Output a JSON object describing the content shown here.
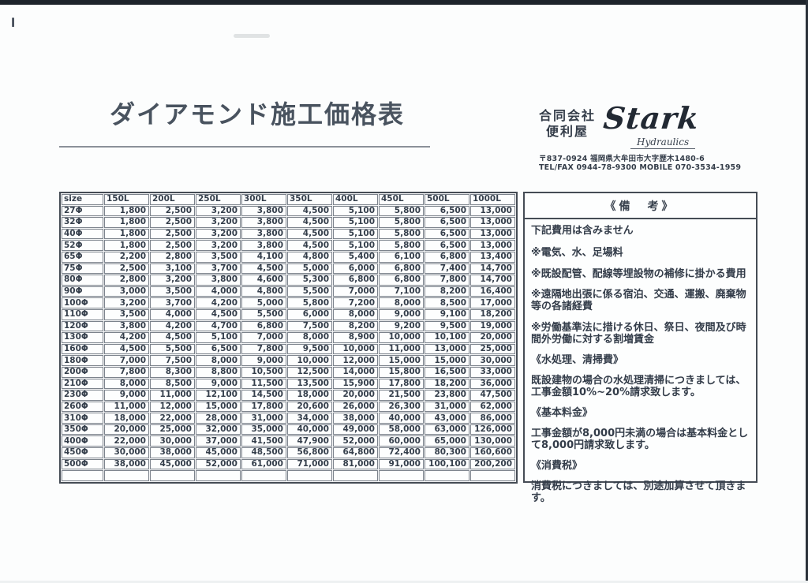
{
  "scan": {
    "stray_mark": "l"
  },
  "header": {
    "title": "ダイアモンド施工価格表",
    "company": {
      "name_line1": "合同会社",
      "name_line2": "便利屋",
      "logo_text": "Stark",
      "logo_sub": "Hydraulics",
      "address": "〒837-0924 福岡県大牟田市大字歴木1480-6",
      "contact": "TEL/FAX 0944-78-9300 MOBILE 070-3534-1959"
    }
  },
  "price_table": {
    "columns": [
      "size",
      "150L",
      "200L",
      "250L",
      "300L",
      "350L",
      "400L",
      "450L",
      "500L",
      "1000L"
    ],
    "rows": [
      {
        "size": "27Φ",
        "values": [
          "1,800",
          "2,500",
          "3,200",
          "3,800",
          "4,500",
          "5,100",
          "5,800",
          "6,500",
          "13,000"
        ]
      },
      {
        "size": "32Φ",
        "values": [
          "1,800",
          "2,500",
          "3,200",
          "3,800",
          "4,500",
          "5,100",
          "5,800",
          "6,500",
          "13,000"
        ]
      },
      {
        "size": "40Φ",
        "values": [
          "1,800",
          "2,500",
          "3,200",
          "3,800",
          "4,500",
          "5,100",
          "5,800",
          "6,500",
          "13,000"
        ]
      },
      {
        "size": "52Φ",
        "values": [
          "1,800",
          "2,500",
          "3,200",
          "3,800",
          "4,500",
          "5,100",
          "5,800",
          "6,500",
          "13,000"
        ]
      },
      {
        "size": "65Φ",
        "values": [
          "2,200",
          "2,800",
          "3,500",
          "4,100",
          "4,800",
          "5,400",
          "6,100",
          "6,800",
          "13,400"
        ]
      },
      {
        "size": "75Φ",
        "values": [
          "2,500",
          "3,100",
          "3,700",
          "4,500",
          "5,000",
          "6,000",
          "6,800",
          "7,400",
          "14,700"
        ]
      },
      {
        "size": "80Φ",
        "values": [
          "2,800",
          "3,200",
          "3,800",
          "4,600",
          "5,300",
          "6,800",
          "6,800",
          "7,800",
          "14,700"
        ]
      },
      {
        "size": "90Φ",
        "values": [
          "3,000",
          "3,500",
          "4,000",
          "4,800",
          "5,500",
          "7,000",
          "7,100",
          "8,200",
          "16,400"
        ]
      },
      {
        "size": "100Φ",
        "values": [
          "3,200",
          "3,700",
          "4,200",
          "5,000",
          "5,800",
          "7,200",
          "8,000",
          "8,500",
          "17,000"
        ]
      },
      {
        "size": "110Φ",
        "values": [
          "3,500",
          "4,000",
          "4,500",
          "5,500",
          "6,000",
          "8,000",
          "9,000",
          "9,100",
          "18,200"
        ]
      },
      {
        "size": "120Φ",
        "values": [
          "3,800",
          "4,200",
          "4,700",
          "6,800",
          "7,500",
          "8,200",
          "9,200",
          "9,500",
          "19,000"
        ]
      },
      {
        "size": "130Φ",
        "values": [
          "4,200",
          "4,500",
          "5,100",
          "7,000",
          "8,000",
          "8,900",
          "10,000",
          "10,100",
          "20,000"
        ]
      },
      {
        "size": "160Φ",
        "values": [
          "4,500",
          "5,500",
          "6,500",
          "7,800",
          "9,500",
          "10,000",
          "11,000",
          "13,000",
          "25,000"
        ]
      },
      {
        "size": "180Φ",
        "values": [
          "7,000",
          "7,500",
          "8,000",
          "9,000",
          "10,000",
          "12,000",
          "15,000",
          "15,000",
          "30,000"
        ]
      },
      {
        "size": "200Φ",
        "values": [
          "7,800",
          "8,300",
          "8,800",
          "10,500",
          "12,500",
          "14,000",
          "15,800",
          "16,500",
          "33,000"
        ]
      },
      {
        "size": "210Φ",
        "values": [
          "8,000",
          "8,500",
          "9,000",
          "11,500",
          "13,500",
          "15,900",
          "17,800",
          "18,200",
          "36,000"
        ]
      },
      {
        "size": "230Φ",
        "values": [
          "9,000",
          "11,000",
          "12,100",
          "14,500",
          "18,000",
          "20,000",
          "21,500",
          "23,800",
          "47,500"
        ]
      },
      {
        "size": "260Φ",
        "values": [
          "11,000",
          "12,000",
          "15,000",
          "17,800",
          "20,600",
          "26,000",
          "26,300",
          "31,000",
          "62,000"
        ]
      },
      {
        "size": "310Φ",
        "values": [
          "18,000",
          "22,000",
          "28,000",
          "31,000",
          "34,000",
          "38,000",
          "40,000",
          "43,000",
          "86,000"
        ]
      },
      {
        "size": "350Φ",
        "values": [
          "20,000",
          "25,000",
          "32,000",
          "35,000",
          "40,000",
          "49,000",
          "58,000",
          "63,000",
          "126,000"
        ]
      },
      {
        "size": "400Φ",
        "values": [
          "22,000",
          "30,000",
          "37,000",
          "41,500",
          "47,900",
          "52,000",
          "60,000",
          "65,000",
          "130,000"
        ]
      },
      {
        "size": "450Φ",
        "values": [
          "30,000",
          "38,000",
          "45,000",
          "48,500",
          "56,800",
          "64,800",
          "72,400",
          "80,300",
          "160,600"
        ]
      },
      {
        "size": "500Φ",
        "values": [
          "38,000",
          "45,000",
          "52,000",
          "61,000",
          "71,000",
          "81,000",
          "91,000",
          "100,100",
          "200,200"
        ]
      },
      {
        "size": "",
        "values": [
          "",
          "",
          "",
          "",
          "",
          "",
          "",
          "",
          ""
        ]
      }
    ]
  },
  "remarks": {
    "title": "《備　考》",
    "lines": [
      {
        "kind": "plain",
        "text": "下記費用は含みません"
      },
      {
        "kind": "note",
        "text": "※電気、水、足場料"
      },
      {
        "kind": "note",
        "text": "※既設配管、配線等埋設物の補修に掛かる費用"
      },
      {
        "kind": "note",
        "text": "※遠隔地出張に係る宿泊、交通、運搬、廃棄物等の各諸経費"
      },
      {
        "kind": "note",
        "text": "※労働基準法に措ける休日、祭日、夜間及び時間外労働に対する割増賃金"
      },
      {
        "kind": "sect",
        "text": "《水処理、清掃費》"
      },
      {
        "kind": "body",
        "text": "既設建物の場合の水処理清掃につきましては、工事金額10%~20%請求致します。"
      },
      {
        "kind": "sect",
        "text": "《基本料金》"
      },
      {
        "kind": "body",
        "text": "工事金額が8,000円未満の場合は基本料金として8,000円請求致します。"
      },
      {
        "kind": "sect",
        "text": "《消費税》"
      },
      {
        "kind": "body",
        "text": "消費税につきましては、別途加算させて頂きます。"
      }
    ]
  },
  "colors": {
    "ink": "#3a4350",
    "table_border_outer": "#454c55",
    "table_border_inner": "#7c838c",
    "scan_edge": "#1e242b"
  }
}
